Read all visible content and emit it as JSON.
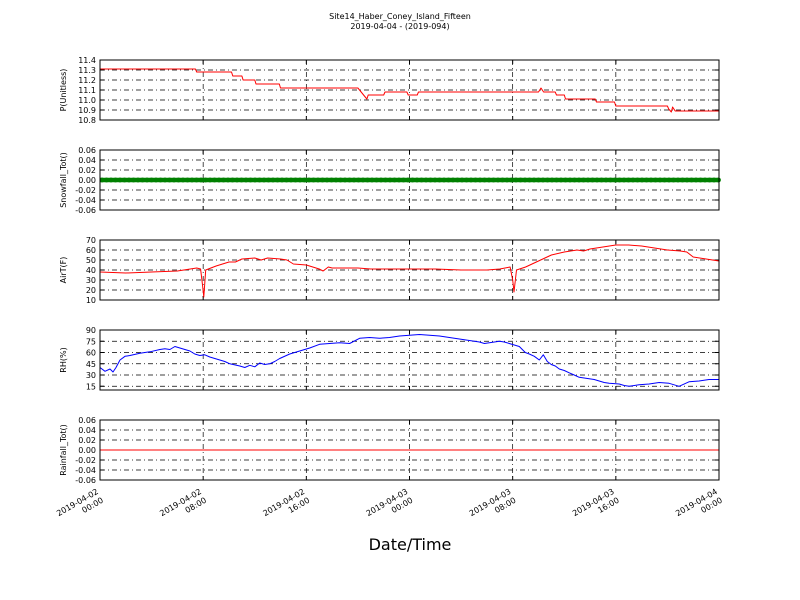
{
  "figure": {
    "title": "Site14_Haber_Coney_Island_Fifteen",
    "subtitle": "2019-04-04 - (2019-094)",
    "xlabel": "Date/Time",
    "x_ticks": [
      {
        "line1": "2019-04-02",
        "line2": "00:00"
      },
      {
        "line1": "2019-04-02",
        "line2": "08:00"
      },
      {
        "line1": "2019-04-02",
        "line2": "16:00"
      },
      {
        "line1": "2019-04-03",
        "line2": "00:00"
      },
      {
        "line1": "2019-04-03",
        "line2": "08:00"
      },
      {
        "line1": "2019-04-03",
        "line2": "16:00"
      },
      {
        "line1": "2019-04-04",
        "line2": "00:00"
      }
    ],
    "grid": true
  },
  "chart_data": [
    {
      "type": "line",
      "ylabel": "P(Unitless)",
      "ylim": [
        10.8,
        11.4
      ],
      "yticks": [
        "10.8",
        "10.9",
        "11.0",
        "11.1",
        "11.2",
        "11.3",
        "11.4"
      ],
      "series": [
        {
          "color": "#ff0000",
          "points": [
            [
              0,
              11.31
            ],
            [
              7.4,
              11.31
            ],
            [
              7.5,
              11.28
            ],
            [
              10.2,
              11.28
            ],
            [
              10.3,
              11.24
            ],
            [
              11.0,
              11.24
            ],
            [
              11.1,
              11.2
            ],
            [
              12.0,
              11.2
            ],
            [
              12.1,
              11.16
            ],
            [
              13.9,
              11.16
            ],
            [
              14.0,
              11.12
            ],
            [
              20.0,
              11.12
            ],
            [
              20.5,
              11.04
            ],
            [
              20.7,
              11.01
            ],
            [
              20.8,
              11.05
            ],
            [
              22.0,
              11.05
            ],
            [
              22.1,
              11.08
            ],
            [
              23.8,
              11.08
            ],
            [
              23.9,
              11.05
            ],
            [
              24.6,
              11.05
            ],
            [
              24.7,
              11.08
            ],
            [
              34.0,
              11.08
            ],
            [
              34.2,
              11.12
            ],
            [
              34.4,
              11.08
            ],
            [
              35.3,
              11.08
            ],
            [
              35.4,
              11.05
            ],
            [
              36.0,
              11.05
            ],
            [
              36.1,
              11.01
            ],
            [
              38.4,
              11.01
            ],
            [
              38.5,
              10.98
            ],
            [
              39.9,
              10.98
            ],
            [
              40.0,
              10.94
            ],
            [
              44.0,
              10.94
            ],
            [
              44.1,
              10.91
            ],
            [
              44.3,
              10.88
            ],
            [
              44.4,
              10.93
            ],
            [
              44.6,
              10.89
            ],
            [
              48,
              10.89
            ]
          ]
        }
      ]
    },
    {
      "type": "scatter",
      "ylabel": "Snowfall_Tot()",
      "ylim": [
        -0.06,
        0.06
      ],
      "yticks": [
        "-0.06",
        "-0.04",
        "-0.02",
        "0.00",
        "0.02",
        "0.04",
        "0.06"
      ],
      "series": [
        {
          "color": "#008000",
          "points": [
            [
              0,
              0
            ],
            [
              48,
              0
            ]
          ]
        }
      ]
    },
    {
      "type": "line",
      "ylabel": "AirT(F)",
      "ylim": [
        10,
        70
      ],
      "yticks": [
        "10",
        "20",
        "30",
        "40",
        "50",
        "60",
        "70"
      ],
      "series": [
        {
          "color": "#ff0000",
          "points": [
            [
              0,
              38
            ],
            [
              2,
              37
            ],
            [
              4,
              38
            ],
            [
              6,
              39
            ],
            [
              7.5,
              42
            ],
            [
              7.8,
              41
            ],
            [
              7.95,
              25
            ],
            [
              8.05,
              13
            ],
            [
              8.2,
              40
            ],
            [
              9,
              44
            ],
            [
              10,
              48
            ],
            [
              10.5,
              48
            ],
            [
              11,
              51
            ],
            [
              12,
              52
            ],
            [
              12.5,
              50
            ],
            [
              13,
              52
            ],
            [
              14,
              51
            ],
            [
              14.5,
              50
            ],
            [
              15,
              46
            ],
            [
              16,
              45
            ],
            [
              16.5,
              43
            ],
            [
              17,
              41
            ],
            [
              17.3,
              39
            ],
            [
              17.7,
              43
            ],
            [
              18,
              42
            ],
            [
              20,
              42
            ],
            [
              21,
              41
            ],
            [
              24,
              41
            ],
            [
              26,
              41
            ],
            [
              28,
              40
            ],
            [
              30,
              40
            ],
            [
              31,
              41
            ],
            [
              31.8,
              43
            ],
            [
              32.0,
              30
            ],
            [
              32.1,
              18
            ],
            [
              32.3,
              40
            ],
            [
              33,
              43
            ],
            [
              34,
              49
            ],
            [
              35,
              55
            ],
            [
              36,
              58
            ],
            [
              37,
              60
            ],
            [
              37.5,
              59
            ],
            [
              38,
              61
            ],
            [
              39,
              63
            ],
            [
              40,
              65
            ],
            [
              41,
              65
            ],
            [
              42,
              64
            ],
            [
              43,
              62
            ],
            [
              44,
              60
            ],
            [
              45,
              59
            ],
            [
              45.5,
              58
            ],
            [
              46,
              53
            ],
            [
              47,
              51
            ],
            [
              48,
              49
            ]
          ]
        }
      ]
    },
    {
      "type": "line",
      "ylabel": "RH(%)",
      "ylim": [
        10,
        90
      ],
      "yticks": [
        "15",
        "30",
        "45",
        "60",
        "75",
        "90"
      ],
      "series": [
        {
          "color": "#0000ff",
          "points": [
            [
              0,
              40
            ],
            [
              0.5,
              35
            ],
            [
              1,
              38
            ],
            [
              1.3,
              34
            ],
            [
              1.6,
              40
            ],
            [
              2,
              50
            ],
            [
              2.5,
              55
            ],
            [
              3,
              56
            ],
            [
              4,
              59
            ],
            [
              5,
              61
            ],
            [
              6,
              64
            ],
            [
              6.5,
              65
            ],
            [
              7,
              64
            ],
            [
              7.5,
              68
            ],
            [
              8,
              66
            ],
            [
              8.5,
              64
            ],
            [
              9,
              62
            ],
            [
              9.5,
              58
            ],
            [
              10,
              56
            ],
            [
              10.5,
              57
            ],
            [
              11,
              54
            ],
            [
              12,
              50
            ],
            [
              12.5,
              48
            ],
            [
              13,
              45
            ],
            [
              14,
              42
            ],
            [
              14.5,
              40
            ],
            [
              15,
              43
            ],
            [
              15.5,
              41
            ],
            [
              16,
              46
            ],
            [
              16.5,
              44
            ],
            [
              17,
              45
            ],
            [
              17.5,
              48
            ],
            [
              18,
              52
            ],
            [
              19,
              58
            ],
            [
              20,
              62
            ],
            [
              21,
              66
            ],
            [
              22,
              71
            ],
            [
              23,
              72
            ],
            [
              24,
              73
            ],
            [
              25,
              72
            ],
            [
              26,
              79
            ],
            [
              27,
              80
            ],
            [
              28,
              79
            ],
            [
              29,
              80
            ],
            [
              30,
              82
            ],
            [
              31,
              83
            ],
            [
              32,
              84
            ],
            [
              33,
              83
            ],
            [
              34,
              82
            ],
            [
              35,
              80
            ],
            [
              36,
              78
            ],
            [
              37,
              76
            ],
            [
              38,
              74
            ],
            [
              38.5,
              72
            ],
            [
              39,
              73
            ],
            [
              40,
              75
            ],
            [
              40.5,
              74
            ],
            [
              41,
              72
            ],
            [
              42,
              68
            ],
            [
              42.3,
              64
            ],
            [
              42.6,
              60
            ],
            [
              43,
              58
            ],
            [
              43.5,
              55
            ],
            [
              44,
              50
            ],
            [
              44.4,
              57
            ],
            [
              44.8,
              48
            ],
            [
              45.2,
              44
            ],
            [
              45.6,
              42
            ],
            [
              46,
              38
            ],
            [
              46.5,
              36
            ],
            [
              47,
              33
            ],
            [
              47.5,
              30
            ],
            [
              48,
              27
            ],
            [
              48.5,
              26
            ],
            [
              49,
              25
            ],
            [
              49.5,
              24
            ],
            [
              50,
              22
            ],
            [
              50.5,
              20
            ],
            [
              51,
              19
            ],
            [
              52,
              18
            ],
            [
              52.5,
              16
            ],
            [
              53,
              15
            ],
            [
              54,
              17
            ],
            [
              55,
              18
            ],
            [
              56,
              20
            ],
            [
              57,
              19
            ],
            [
              58,
              15
            ],
            [
              59,
              21
            ],
            [
              60,
              22
            ],
            [
              61,
              24
            ],
            [
              62,
              24
            ]
          ]
        }
      ]
    },
    {
      "type": "line",
      "ylabel": "Rainfall_Tot()",
      "ylim": [
        -0.06,
        0.06
      ],
      "yticks": [
        "-0.06",
        "-0.04",
        "-0.02",
        "0.00",
        "0.02",
        "0.04",
        "0.06"
      ],
      "series": [
        {
          "color": "#ff0000",
          "points": [
            [
              0,
              0
            ],
            [
              48,
              0
            ]
          ]
        }
      ]
    }
  ]
}
